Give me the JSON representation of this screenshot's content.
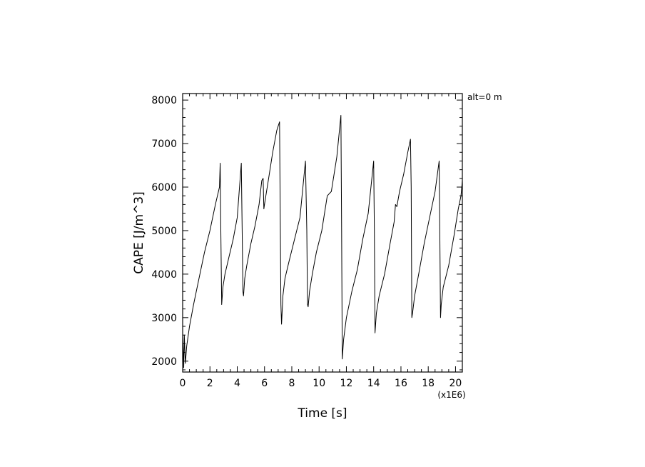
{
  "chart_data": {
    "type": "line",
    "xlabel": "Time [s]",
    "ylabel": "CAPE [J/m^3]",
    "x_multiplier_label": "(x1E6)",
    "annotation": "alt=0 m",
    "xlim": [
      0,
      20.5
    ],
    "ylim": [
      1750,
      8150
    ],
    "x_ticks": [
      0,
      2,
      4,
      6,
      8,
      10,
      12,
      14,
      16,
      18,
      20
    ],
    "x_tick_labels": [
      "0",
      "2",
      "4",
      "6",
      "8",
      "10",
      "12",
      "14",
      "16",
      "18",
      "20"
    ],
    "y_ticks": [
      2000,
      3000,
      4000,
      5000,
      6000,
      7000,
      8000
    ],
    "y_tick_labels": [
      "2000",
      "3000",
      "4000",
      "5000",
      "6000",
      "7000",
      "8000"
    ],
    "grid": false,
    "series": [
      {
        "color": "#000000",
        "x": [
          0.0,
          0.08,
          0.12,
          0.2,
          0.3,
          0.5,
          0.8,
          1.2,
          1.6,
          2.0,
          2.4,
          2.7,
          2.75,
          2.8,
          2.86,
          2.95,
          3.1,
          3.4,
          3.7,
          4.0,
          4.3,
          4.38,
          4.42,
          4.46,
          4.55,
          4.7,
          5.0,
          5.3,
          5.6,
          5.8,
          5.9,
          5.95,
          6.0,
          6.1,
          6.3,
          6.6,
          6.9,
          7.1,
          7.15,
          7.2,
          7.25,
          7.35,
          7.5,
          7.8,
          8.2,
          8.6,
          9.0,
          9.1,
          9.15,
          9.2,
          9.3,
          9.5,
          9.8,
          10.2,
          10.6,
          10.9,
          11.3,
          11.6,
          11.65,
          11.7,
          11.8,
          12.0,
          12.4,
          12.8,
          13.2,
          13.6,
          14.0,
          14.05,
          14.1,
          14.2,
          14.4,
          14.8,
          15.2,
          15.5,
          15.6,
          15.7,
          15.9,
          16.2,
          16.5,
          16.7,
          16.75,
          16.8,
          16.85,
          17.0,
          17.3,
          17.7,
          18.1,
          18.5,
          18.8,
          18.85,
          18.9,
          18.95,
          19.1,
          19.5,
          19.9,
          20.2,
          20.4,
          20.5
        ],
        "y": [
          2600,
          1850,
          2600,
          1950,
          2350,
          2800,
          3300,
          3900,
          4500,
          5000,
          5600,
          6000,
          6550,
          5000,
          3300,
          3700,
          4000,
          4400,
          4800,
          5300,
          6550,
          4500,
          3600,
          3500,
          3900,
          4200,
          4700,
          5100,
          5600,
          6150,
          6200,
          5500,
          5600,
          5800,
          6200,
          6800,
          7300,
          7500,
          5500,
          3300,
          2850,
          3500,
          3900,
          4300,
          4800,
          5300,
          6600,
          5000,
          3300,
          3250,
          3600,
          4000,
          4500,
          5000,
          5800,
          5900,
          6700,
          7650,
          5000,
          2050,
          2500,
          3000,
          3600,
          4100,
          4800,
          5400,
          6600,
          5000,
          2650,
          3100,
          3500,
          4000,
          4700,
          5200,
          5600,
          5550,
          5900,
          6300,
          6800,
          7100,
          6000,
          3000,
          3100,
          3500,
          4000,
          4700,
          5300,
          5900,
          6600,
          5000,
          3000,
          3300,
          3700,
          4200,
          4900,
          5500,
          5800,
          6150
        ]
      }
    ]
  }
}
